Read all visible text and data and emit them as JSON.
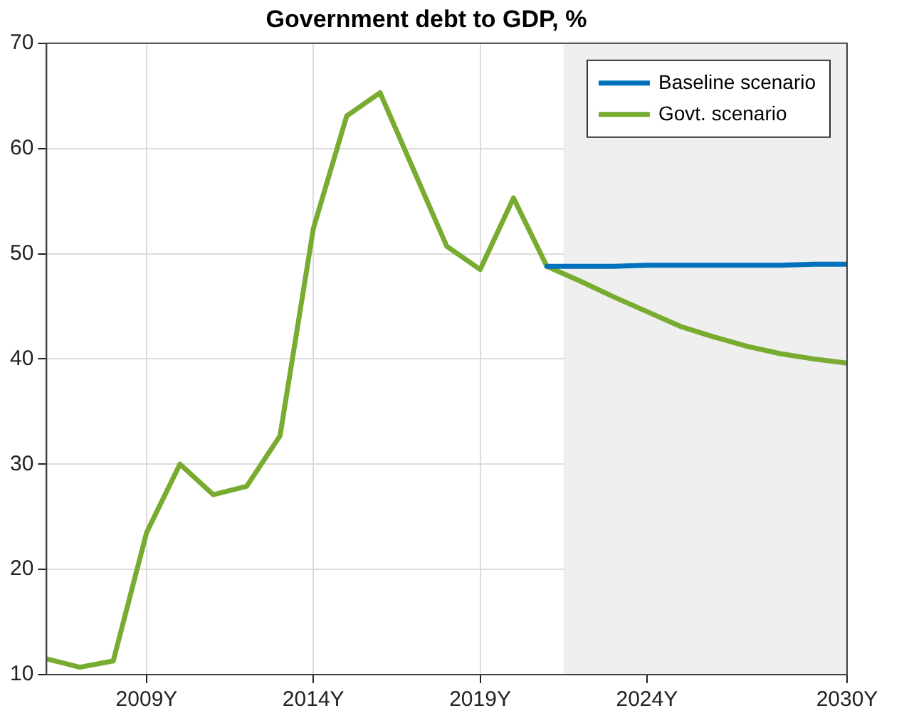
{
  "chart_data": {
    "type": "line",
    "title": "Government debt to GDP, %",
    "series": [
      {
        "name": "Baseline scenario",
        "color": "#0072bd",
        "x": [
          2021,
          2022,
          2023,
          2024,
          2025,
          2026,
          2027,
          2028,
          2029,
          2030
        ],
        "values": [
          48.8,
          48.8,
          48.8,
          48.9,
          48.9,
          48.9,
          48.9,
          48.9,
          49.0,
          49.0
        ]
      },
      {
        "name": "Govt. scenario",
        "color": "#77ac30",
        "x": [
          2006,
          2007,
          2008,
          2009,
          2010,
          2011,
          2012,
          2013,
          2014,
          2015,
          2016,
          2017,
          2018,
          2019,
          2020,
          2021,
          2022,
          2023,
          2024,
          2025,
          2026,
          2027,
          2028,
          2029,
          2030
        ],
        "values": [
          11.5,
          10.7,
          11.3,
          23.5,
          30.0,
          27.1,
          27.9,
          32.7,
          52.4,
          63.1,
          65.3,
          58.0,
          50.7,
          48.5,
          55.3,
          48.8,
          47.4,
          45.9,
          44.5,
          43.1,
          42.1,
          41.2,
          40.5,
          40.0,
          39.6
        ]
      }
    ],
    "xlim": [
      2006,
      2030
    ],
    "xticks": [
      {
        "value": 2009,
        "label": "2009Y"
      },
      {
        "value": 2014,
        "label": "2014Y"
      },
      {
        "value": 2019,
        "label": "2019Y"
      },
      {
        "value": 2024,
        "label": "2024Y"
      },
      {
        "value": 2030,
        "label": "2030Y"
      }
    ],
    "ylim": [
      10,
      70
    ],
    "yticks": [
      10,
      20,
      30,
      40,
      50,
      60,
      70
    ],
    "bands": [
      {
        "axis": "x",
        "from": 2021.5,
        "to": 2030,
        "color": "#efefef"
      }
    ],
    "grid": true,
    "legend": "top right",
    "marker": "none",
    "line_style": "solid"
  }
}
